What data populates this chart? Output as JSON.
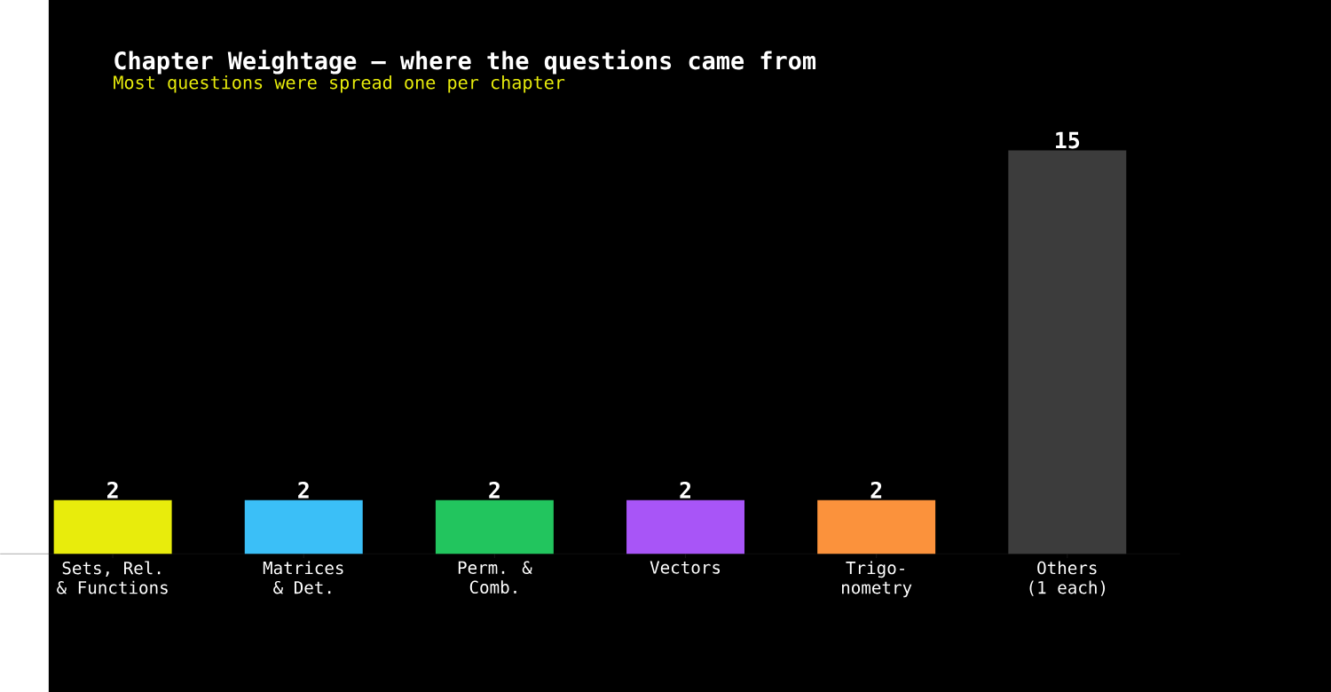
{
  "chart_data": {
    "type": "bar",
    "title": "Chapter Weightage — where the questions came from",
    "subtitle": "Most questions were spread one per chapter",
    "categories": [
      "Sets, Rel.\n& Functions",
      "Matrices\n& Det.",
      "Perm. &\nComb.",
      "Vectors",
      "Trigo-\nnometry",
      "Others\n(1 each)"
    ],
    "values": [
      2,
      2,
      2,
      2,
      2,
      15
    ],
    "colors": [
      "#e8ec0c",
      "#3bbff7",
      "#22c55e",
      "#a855f7",
      "#fb923c",
      "#3c3c3c"
    ],
    "data_labels": true
  }
}
